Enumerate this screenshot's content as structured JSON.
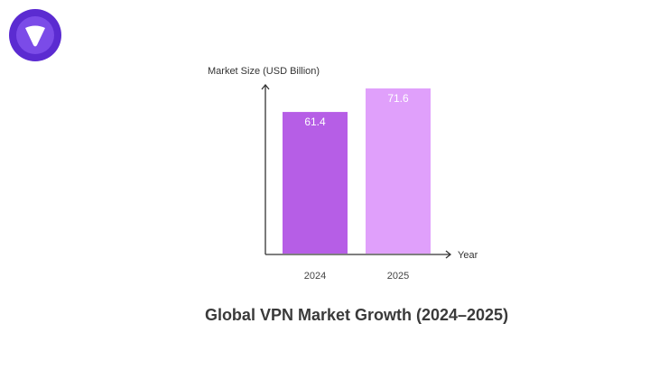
{
  "logo": {
    "icon": "vpn-shield-logo",
    "colors": {
      "outer": "#5b2bd1",
      "inner": "#7b4be8",
      "mark": "#ffffff"
    }
  },
  "chart_data": {
    "type": "bar",
    "title": "Global VPN Market Growth (2024–2025)",
    "ylabel": "Market Size (USD Billion)",
    "xlabel": "Year",
    "categories": [
      "2024",
      "2025"
    ],
    "values": [
      61.4,
      71.6
    ],
    "value_labels": [
      "61.4",
      "71.6"
    ],
    "colors": [
      "#b65ee6",
      "#e0a0fb"
    ],
    "ylim": [
      0,
      71.6
    ],
    "grid": false
  }
}
